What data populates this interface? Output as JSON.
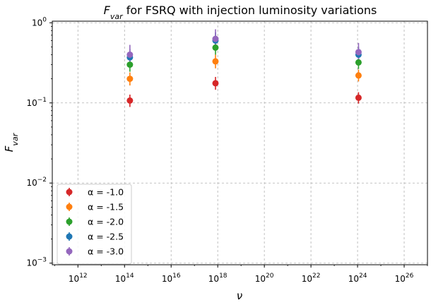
{
  "chart_data": {
    "type": "scatter",
    "title": {
      "symbol": "F",
      "subscript": "var",
      "rest": " for FSRQ with injection luminosity variations"
    },
    "xlabel": "ν",
    "ylabel": {
      "symbol": "F",
      "subscript": "var"
    },
    "x_scale": "log",
    "y_scale": "log",
    "x_log_range": [
      10.9,
      27.0
    ],
    "y_log_range": [
      -3.02,
      0.02
    ],
    "x_ticks": [
      {
        "exp": 12,
        "base": "10",
        "power": "12"
      },
      {
        "exp": 14,
        "base": "10",
        "power": "14"
      },
      {
        "exp": 16,
        "base": "10",
        "power": "16"
      },
      {
        "exp": 18,
        "base": "10",
        "power": "18"
      },
      {
        "exp": 20,
        "base": "10",
        "power": "20"
      },
      {
        "exp": 22,
        "base": "10",
        "power": "22"
      },
      {
        "exp": 24,
        "base": "10",
        "power": "24"
      },
      {
        "exp": 26,
        "base": "10",
        "power": "26"
      }
    ],
    "y_ticks": [
      {
        "exp": -3,
        "base": "10",
        "power": "−3"
      },
      {
        "exp": -2,
        "base": "10",
        "power": "−2"
      },
      {
        "exp": -1,
        "base": "10",
        "power": "−1"
      },
      {
        "exp": 0,
        "base": "10",
        "power": "0"
      }
    ],
    "grid": true,
    "legend_position": "bottom-left",
    "x": [
      170000000000000.0,
      8e+17,
      1.1e+24
    ],
    "series": [
      {
        "name": "α = -1.0",
        "color": "#d62728",
        "y": [
          0.107,
          0.176,
          0.116
        ],
        "err_low": [
          0.018,
          0.03,
          0.018
        ],
        "err_high": [
          0.02,
          0.035,
          0.02
        ]
      },
      {
        "name": "α = -1.5",
        "color": "#ff7f0e",
        "y": [
          0.2,
          0.33,
          0.22
        ],
        "err_low": [
          0.035,
          0.06,
          0.035
        ],
        "err_high": [
          0.04,
          0.07,
          0.04
        ]
      },
      {
        "name": "α = -2.0",
        "color": "#2ca02c",
        "y": [
          0.3,
          0.49,
          0.32
        ],
        "err_low": [
          0.055,
          0.09,
          0.055
        ],
        "err_high": [
          0.07,
          0.11,
          0.07
        ]
      },
      {
        "name": "α = -2.5",
        "color": "#1f77b4",
        "y": [
          0.37,
          0.6,
          0.4
        ],
        "err_low": [
          0.075,
          0.12,
          0.075
        ],
        "err_high": [
          0.1,
          0.16,
          0.1
        ]
      },
      {
        "name": "α = -3.0",
        "color": "#9467bd",
        "y": [
          0.4,
          0.63,
          0.43
        ],
        "err_low": [
          0.1,
          0.15,
          0.1
        ],
        "err_high": [
          0.13,
          0.2,
          0.13
        ]
      }
    ]
  }
}
